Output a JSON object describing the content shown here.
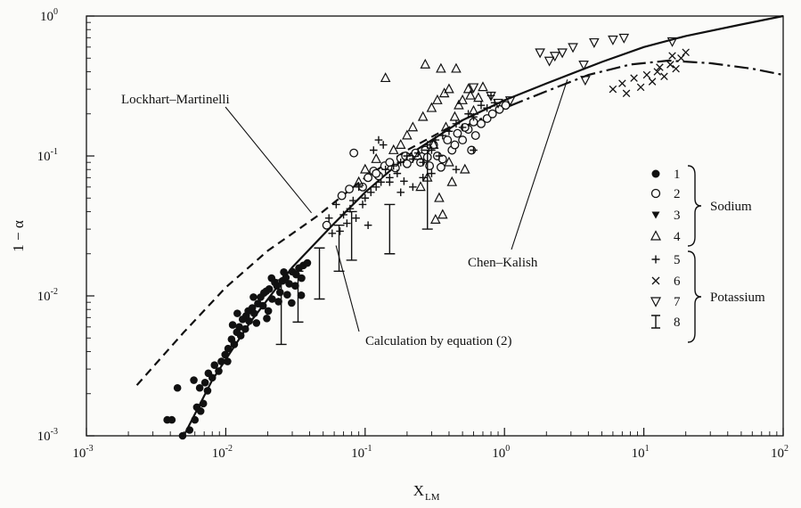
{
  "chart_data": {
    "type": "scatter",
    "xscale": "log",
    "yscale": "log",
    "xlim": [
      0.001,
      100
    ],
    "ylim": [
      0.001,
      1
    ],
    "xlabel": "X",
    "xlabel_sub": "LM",
    "ylabel": "1 − α",
    "grid": false,
    "x_ticks": [
      {
        "base": "10",
        "exp": "-3"
      },
      {
        "base": "10",
        "exp": "-2"
      },
      {
        "base": "10",
        "exp": "-1"
      },
      {
        "base": "10",
        "exp": "0"
      },
      {
        "base": "10",
        "exp": "1"
      },
      {
        "base": "10",
        "exp": "2"
      }
    ],
    "y_ticks": [
      {
        "base": "10",
        "exp": "-3"
      },
      {
        "base": "10",
        "exp": "-2"
      },
      {
        "base": "10",
        "exp": "-1"
      },
      {
        "base": "10",
        "exp": "0"
      }
    ],
    "curves": [
      {
        "name": "Lockhart–Martinelli",
        "style": "dashed",
        "points": [
          [
            0.0023,
            0.0023
          ],
          [
            0.005,
            0.0055
          ],
          [
            0.01,
            0.0115
          ],
          [
            0.02,
            0.021
          ],
          [
            0.045,
            0.037
          ],
          [
            0.1,
            0.07
          ],
          [
            0.2,
            0.11
          ],
          [
            0.5,
            0.18
          ],
          [
            1.0,
            0.25
          ]
        ]
      },
      {
        "name": "Calculation by equation (2)",
        "style": "solid",
        "points": [
          [
            0.005,
            0.001
          ],
          [
            0.008,
            0.0025
          ],
          [
            0.015,
            0.0065
          ],
          [
            0.03,
            0.016
          ],
          [
            0.06,
            0.033
          ],
          [
            0.1,
            0.055
          ],
          [
            0.2,
            0.1
          ],
          [
            0.5,
            0.18
          ],
          [
            1.0,
            0.25
          ],
          [
            2.0,
            0.33
          ],
          [
            5.0,
            0.47
          ],
          [
            10.0,
            0.6
          ],
          [
            20.0,
            0.72
          ],
          [
            50.0,
            0.87
          ],
          [
            100.0,
            1.0
          ]
        ]
      },
      {
        "name": "Chen–Kalish",
        "style": "dash-dot",
        "points": [
          [
            0.5,
            0.16
          ],
          [
            1.0,
            0.22
          ],
          [
            2.0,
            0.29
          ],
          [
            4.0,
            0.38
          ],
          [
            8.0,
            0.45
          ],
          [
            15.0,
            0.48
          ],
          [
            30.0,
            0.46
          ],
          [
            60.0,
            0.42
          ],
          [
            100.0,
            0.38
          ]
        ]
      }
    ],
    "annotations": [
      {
        "text": "Lockhart–Martinelli",
        "target": [
          0.045,
          0.037
        ],
        "position": "left"
      },
      {
        "text": "Calculation by equation (2)",
        "target": [
          0.06,
          0.025
        ],
        "position": "below-right"
      },
      {
        "text": "Chen–Kalish",
        "target": [
          3.0,
          0.42
        ],
        "position": "below"
      }
    ],
    "legend": {
      "placement": "right",
      "entries": [
        {
          "marker": "filled-circle",
          "label": "1"
        },
        {
          "marker": "open-circle",
          "label": "2"
        },
        {
          "marker": "filled-triangle-down",
          "label": "3"
        },
        {
          "marker": "open-triangle-up",
          "label": "4"
        },
        {
          "marker": "plus",
          "label": "5"
        },
        {
          "marker": "cross",
          "label": "6"
        },
        {
          "marker": "open-triangle-down",
          "label": "7"
        },
        {
          "marker": "errorbar",
          "label": "8"
        }
      ],
      "groups": [
        {
          "label": "Sodium",
          "members": [
            "1",
            "2",
            "3",
            "4"
          ]
        },
        {
          "label": "Potassium",
          "members": [
            "5",
            "6",
            "7",
            "8"
          ]
        }
      ]
    },
    "series": [
      {
        "label": "1",
        "marker": "filled-circle",
        "points": [
          [
            0.0038,
            0.0013
          ],
          [
            0.0041,
            0.0013
          ],
          [
            0.0049,
            0.001
          ],
          [
            0.0055,
            0.0011
          ],
          [
            0.006,
            0.0013
          ],
          [
            0.0062,
            0.0016
          ],
          [
            0.0066,
            0.0015
          ],
          [
            0.0069,
            0.0017
          ],
          [
            0.0065,
            0.0022
          ],
          [
            0.0059,
            0.0025
          ],
          [
            0.0071,
            0.0024
          ],
          [
            0.0075,
            0.0028
          ],
          [
            0.008,
            0.0026
          ],
          [
            0.0083,
            0.0032
          ],
          [
            0.0089,
            0.0029
          ],
          [
            0.0093,
            0.0034
          ],
          [
            0.0099,
            0.0038
          ],
          [
            0.0104,
            0.0042
          ],
          [
            0.011,
            0.0049
          ],
          [
            0.0115,
            0.0045
          ],
          [
            0.012,
            0.0055
          ],
          [
            0.0125,
            0.006
          ],
          [
            0.0128,
            0.0052
          ],
          [
            0.0132,
            0.0068
          ],
          [
            0.014,
            0.0072
          ],
          [
            0.0147,
            0.0066
          ],
          [
            0.0155,
            0.0082
          ],
          [
            0.016,
            0.0075
          ],
          [
            0.017,
            0.0088
          ],
          [
            0.0178,
            0.0098
          ],
          [
            0.0185,
            0.0085
          ],
          [
            0.0195,
            0.0108
          ],
          [
            0.0205,
            0.0112
          ],
          [
            0.0215,
            0.0095
          ],
          [
            0.0225,
            0.0125
          ],
          [
            0.0233,
            0.0118
          ],
          [
            0.0245,
            0.0106
          ],
          [
            0.0255,
            0.0128
          ],
          [
            0.027,
            0.0135
          ],
          [
            0.0285,
            0.0122
          ],
          [
            0.03,
            0.0149
          ],
          [
            0.032,
            0.0142
          ],
          [
            0.0335,
            0.0158
          ],
          [
            0.036,
            0.0165
          ],
          [
            0.0385,
            0.0172
          ],
          [
            0.0045,
            0.0022
          ],
          [
            0.0074,
            0.0021
          ],
          [
            0.0103,
            0.0034
          ],
          [
            0.0138,
            0.0058
          ],
          [
            0.0166,
            0.0064
          ],
          [
            0.0202,
            0.0078
          ],
          [
            0.0239,
            0.0091
          ],
          [
            0.0276,
            0.0102
          ],
          [
            0.0315,
            0.0118
          ],
          [
            0.035,
            0.0134
          ],
          [
            0.0112,
            0.0062
          ],
          [
            0.0145,
            0.0078
          ],
          [
            0.0188,
            0.0105
          ],
          [
            0.0261,
            0.0148
          ],
          [
            0.0121,
            0.0075
          ],
          [
            0.0158,
            0.0098
          ],
          [
            0.0213,
            0.0134
          ],
          [
            0.0197,
            0.0069
          ],
          [
            0.0297,
            0.0089
          ],
          [
            0.0348,
            0.0101
          ]
        ]
      },
      {
        "label": "2",
        "marker": "open-circle",
        "points": [
          [
            0.053,
            0.032
          ],
          [
            0.068,
            0.052
          ],
          [
            0.077,
            0.058
          ],
          [
            0.083,
            0.105
          ],
          [
            0.096,
            0.06
          ],
          [
            0.105,
            0.07
          ],
          [
            0.115,
            0.078
          ],
          [
            0.125,
            0.072
          ],
          [
            0.138,
            0.085
          ],
          [
            0.15,
            0.09
          ],
          [
            0.165,
            0.082
          ],
          [
            0.18,
            0.096
          ],
          [
            0.195,
            0.1
          ],
          [
            0.21,
            0.095
          ],
          [
            0.23,
            0.105
          ],
          [
            0.25,
            0.09
          ],
          [
            0.27,
            0.11
          ],
          [
            0.29,
            0.085
          ],
          [
            0.31,
            0.12
          ],
          [
            0.33,
            0.1
          ],
          [
            0.36,
            0.095
          ],
          [
            0.39,
            0.13
          ],
          [
            0.42,
            0.11
          ],
          [
            0.46,
            0.145
          ],
          [
            0.5,
            0.13
          ],
          [
            0.55,
            0.155
          ],
          [
            0.58,
            0.11
          ],
          [
            0.62,
            0.14
          ],
          [
            0.68,
            0.17
          ],
          [
            0.75,
            0.185
          ],
          [
            0.82,
            0.2
          ],
          [
            0.92,
            0.215
          ],
          [
            1.02,
            0.23
          ],
          [
            0.35,
            0.083
          ],
          [
            0.44,
            0.12
          ],
          [
            0.52,
            0.16
          ],
          [
            0.6,
            0.175
          ],
          [
            0.28,
            0.098
          ],
          [
            0.2,
            0.088
          ],
          [
            0.12,
            0.075
          ]
        ]
      },
      {
        "label": "4",
        "marker": "open-triangle-up",
        "points": [
          [
            0.09,
            0.065
          ],
          [
            0.1,
            0.08
          ],
          [
            0.12,
            0.095
          ],
          [
            0.14,
            0.36
          ],
          [
            0.16,
            0.11
          ],
          [
            0.18,
            0.12
          ],
          [
            0.2,
            0.14
          ],
          [
            0.22,
            0.16
          ],
          [
            0.25,
            0.06
          ],
          [
            0.26,
            0.19
          ],
          [
            0.28,
            0.07
          ],
          [
            0.3,
            0.22
          ],
          [
            0.32,
            0.035
          ],
          [
            0.34,
            0.05
          ],
          [
            0.35,
            0.42
          ],
          [
            0.36,
            0.038
          ],
          [
            0.37,
            0.28
          ],
          [
            0.4,
            0.3
          ],
          [
            0.42,
            0.065
          ],
          [
            0.45,
            0.42
          ],
          [
            0.47,
            0.23
          ],
          [
            0.5,
            0.25
          ],
          [
            0.52,
            0.08
          ],
          [
            0.55,
            0.3
          ],
          [
            0.6,
            0.21
          ],
          [
            0.65,
            0.26
          ],
          [
            0.7,
            0.31
          ],
          [
            0.27,
            0.45
          ],
          [
            0.38,
            0.16
          ],
          [
            0.44,
            0.19
          ],
          [
            0.31,
            0.12
          ],
          [
            0.24,
            0.1
          ],
          [
            0.57,
            0.27
          ],
          [
            0.33,
            0.25
          ],
          [
            0.4,
            0.09
          ]
        ]
      },
      {
        "label": "5",
        "marker": "plus",
        "points": [
          [
            0.055,
            0.036
          ],
          [
            0.058,
            0.028
          ],
          [
            0.062,
            0.045
          ],
          [
            0.066,
            0.029
          ],
          [
            0.07,
            0.038
          ],
          [
            0.074,
            0.033
          ],
          [
            0.078,
            0.042
          ],
          [
            0.082,
            0.048
          ],
          [
            0.086,
            0.036
          ],
          [
            0.09,
            0.06
          ],
          [
            0.096,
            0.045
          ],
          [
            0.1,
            0.05
          ],
          [
            0.105,
            0.032
          ],
          [
            0.11,
            0.055
          ],
          [
            0.12,
            0.06
          ],
          [
            0.13,
            0.065
          ],
          [
            0.14,
            0.08
          ],
          [
            0.15,
            0.07
          ],
          [
            0.16,
            0.085
          ],
          [
            0.17,
            0.075
          ],
          [
            0.18,
            0.09
          ],
          [
            0.19,
            0.066
          ],
          [
            0.2,
            0.1
          ],
          [
            0.22,
            0.095
          ],
          [
            0.24,
            0.105
          ],
          [
            0.26,
            0.09
          ],
          [
            0.28,
            0.12
          ],
          [
            0.3,
            0.11
          ],
          [
            0.32,
            0.13
          ],
          [
            0.34,
            0.1
          ],
          [
            0.36,
            0.14
          ],
          [
            0.4,
            0.15
          ],
          [
            0.45,
            0.17
          ],
          [
            0.5,
            0.16
          ],
          [
            0.55,
            0.2
          ],
          [
            0.6,
            0.19
          ],
          [
            0.68,
            0.23
          ],
          [
            0.75,
            0.22
          ],
          [
            0.8,
            0.27
          ],
          [
            0.85,
            0.24
          ],
          [
            0.115,
            0.11
          ],
          [
            0.125,
            0.13
          ],
          [
            0.135,
            0.12
          ],
          [
            0.6,
            0.11
          ],
          [
            0.45,
            0.08
          ],
          [
            0.18,
            0.055
          ],
          [
            0.22,
            0.06
          ],
          [
            0.15,
            0.065
          ],
          [
            0.3,
            0.075
          ],
          [
            0.26,
            0.07
          ]
        ]
      },
      {
        "label": "6",
        "marker": "cross",
        "points": [
          [
            6.0,
            0.3
          ],
          [
            7.0,
            0.33
          ],
          [
            7.5,
            0.28
          ],
          [
            8.5,
            0.36
          ],
          [
            9.5,
            0.31
          ],
          [
            10.5,
            0.38
          ],
          [
            11.5,
            0.34
          ],
          [
            12.5,
            0.4
          ],
          [
            14.0,
            0.37
          ],
          [
            15.5,
            0.45
          ],
          [
            17.0,
            0.42
          ],
          [
            18.5,
            0.5
          ],
          [
            20.0,
            0.55
          ],
          [
            13.0,
            0.43
          ],
          [
            16.0,
            0.52
          ]
        ]
      },
      {
        "label": "7",
        "marker": "open-triangle-down",
        "points": [
          [
            0.6,
            0.31
          ],
          [
            0.8,
            0.27
          ],
          [
            1.8,
            0.55
          ],
          [
            2.1,
            0.48
          ],
          [
            2.3,
            0.52
          ],
          [
            2.6,
            0.55
          ],
          [
            3.1,
            0.6
          ],
          [
            3.7,
            0.45
          ],
          [
            3.8,
            0.35
          ],
          [
            6.0,
            0.68
          ],
          [
            7.2,
            0.7
          ],
          [
            16.0,
            0.66
          ],
          [
            4.4,
            0.65
          ],
          [
            0.9,
            0.24
          ],
          [
            1.1,
            0.25
          ]
        ]
      },
      {
        "label": "8",
        "marker": "errorbar",
        "points": [
          [
            0.025,
            0.0075,
            0.0045,
            0.013
          ],
          [
            0.033,
            0.0095,
            0.0065,
            0.015
          ],
          [
            0.047,
            0.0095,
            0.0095,
            0.022
          ],
          [
            0.065,
            0.01,
            0.015,
            0.032
          ],
          [
            0.08,
            0.03,
            0.018,
            0.04
          ],
          [
            0.15,
            0.03,
            0.02,
            0.045
          ],
          [
            0.28,
            0.07,
            0.03,
            0.11
          ]
        ]
      }
    ]
  }
}
